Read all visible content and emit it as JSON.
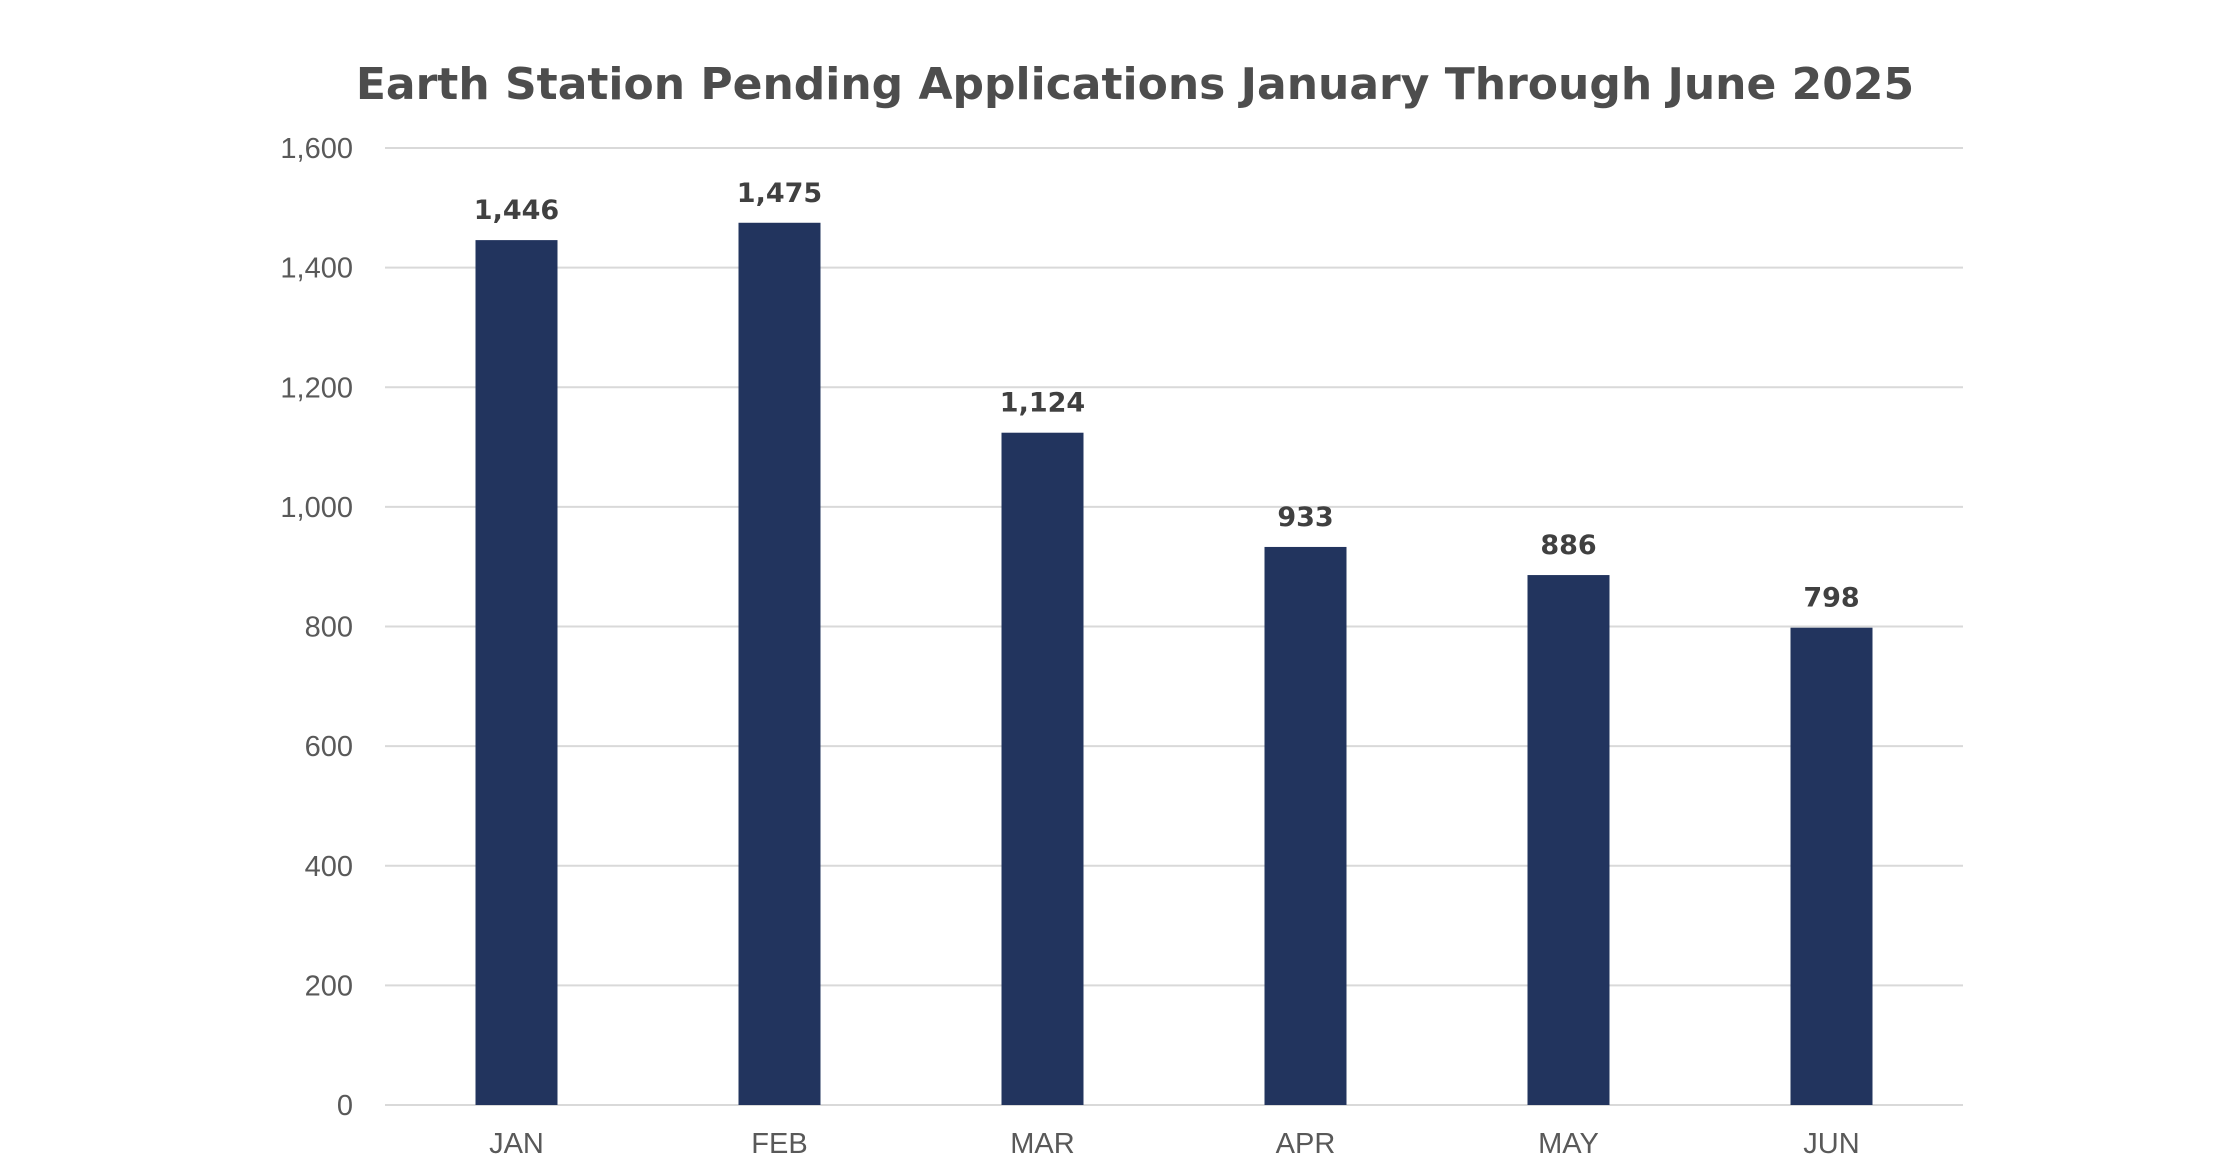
{
  "chart_data": {
    "type": "bar",
    "title": "Earth Station Pending Applications January Through June 2025",
    "xlabel": "",
    "ylabel": "",
    "categories": [
      "JAN",
      "FEB",
      "MAR",
      "APR",
      "MAY",
      "JUN"
    ],
    "values": [
      1446,
      1475,
      1124,
      933,
      886,
      798
    ],
    "value_labels": [
      "1,446",
      "1,475",
      "1,124",
      "933",
      "886",
      "798"
    ],
    "ylim": [
      0,
      1600
    ],
    "yticks": [
      0,
      200,
      400,
      600,
      800,
      1000,
      1200,
      1400,
      1600
    ],
    "ytick_labels": [
      "0",
      "200",
      "400",
      "600",
      "800",
      "1,000",
      "1,200",
      "1,400",
      "1,600"
    ],
    "grid": true,
    "legend": "none",
    "bar_color": "#22345e"
  }
}
